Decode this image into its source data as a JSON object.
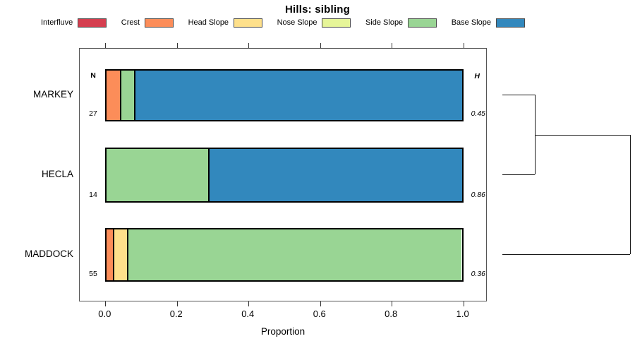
{
  "chart_data": {
    "type": "bar",
    "orientation": "horizontal",
    "stacked": true,
    "title": "Hills: sibling",
    "xlabel": "Proportion",
    "xlim": [
      0,
      1
    ],
    "xticks": [
      "0.0",
      "0.2",
      "0.4",
      "0.6",
      "0.8",
      "1.0"
    ],
    "grid": false,
    "legend_position": "top",
    "legend": [
      {
        "label": "Interfluve",
        "color": "#D53E4F"
      },
      {
        "label": "Crest",
        "color": "#FC8D59"
      },
      {
        "label": "Head Slope",
        "color": "#FEE08B"
      },
      {
        "label": "Nose Slope",
        "color": "#E6F598"
      },
      {
        "label": "Side Slope",
        "color": "#99D594"
      },
      {
        "label": "Base Slope",
        "color": "#3288BD"
      }
    ],
    "columns": {
      "n_header": "N",
      "h_header": "H"
    },
    "bars": [
      {
        "label": "MARKEY",
        "n": "27",
        "h": "0.45",
        "segments": [
          {
            "category": "Crest",
            "value": 0.037
          },
          {
            "category": "Side Slope",
            "value": 0.037
          },
          {
            "category": "Base Slope",
            "value": 0.926
          }
        ]
      },
      {
        "label": "HECLA",
        "n": "14",
        "h": "0.86",
        "segments": [
          {
            "category": "Side Slope",
            "value": 0.286
          },
          {
            "category": "Base Slope",
            "value": 0.714
          }
        ]
      },
      {
        "label": "MADDOCK",
        "n": "55",
        "h": "0.36",
        "segments": [
          {
            "category": "Crest",
            "value": 0.018
          },
          {
            "category": "Head Slope",
            "value": 0.036
          },
          {
            "category": "Side Slope",
            "value": 0.945
          }
        ]
      }
    ],
    "dendrogram": {
      "leaves": [
        "MARKEY",
        "HECLA",
        "MADDOCK"
      ],
      "merges": [
        {
          "a": 0,
          "b": 1,
          "height": 0.254
        },
        {
          "a": "merge0",
          "b": 2,
          "height": 1.0
        }
      ]
    }
  }
}
